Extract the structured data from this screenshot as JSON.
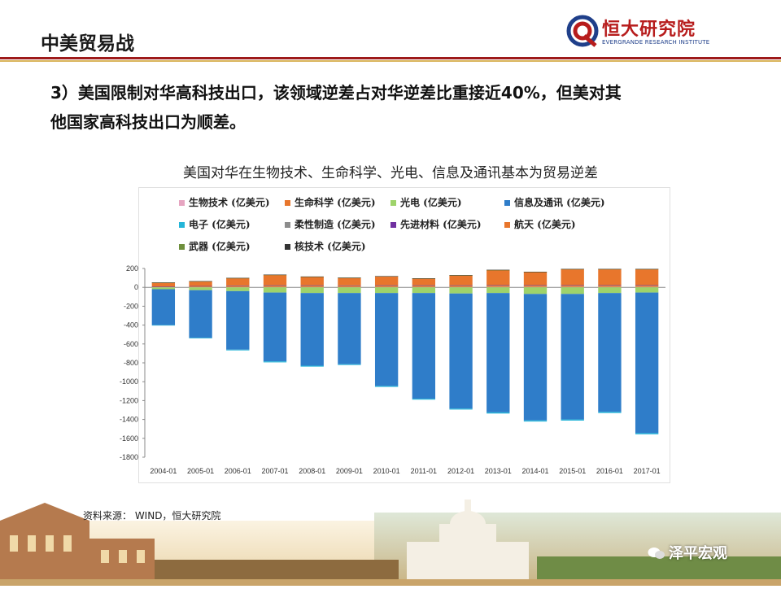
{
  "header": {
    "title": "中美贸易战",
    "logo_cn": "恒大研究院",
    "logo_en": "EVERGRANDE RESEARCH INSTITUTE"
  },
  "heading": {
    "line1": "3）美国限制对华高科技出口，该领域逆差占对华逆差比重接近40%，但美对其",
    "line2": "他国家高科技出口为顺差。"
  },
  "footer": {
    "source": "资料来源： WIND，恒大研究院",
    "brand": "泽平宏观"
  },
  "chart_data": {
    "type": "bar",
    "stacked": true,
    "title": "美国对华在生物技术、生命科学、光电、信息及通讯基本为贸易逆差",
    "categories": [
      "2004-01",
      "2005-01",
      "2006-01",
      "2007-01",
      "2008-01",
      "2009-01",
      "2010-01",
      "2011-01",
      "2012-01",
      "2013-01",
      "2014-01",
      "2015-01",
      "2016-01",
      "2017-01"
    ],
    "ylim": [
      -1800,
      200
    ],
    "yticks": [
      200,
      0,
      -200,
      -400,
      -600,
      -800,
      -1000,
      -1200,
      -1400,
      -1600,
      -1800
    ],
    "ytick_labels": [
      "200",
      "0",
      "-200",
      "-400",
      "-600",
      "-800",
      "-1000",
      "-1200",
      "-1400",
      "-1600",
      "-1800"
    ],
    "legend_position": "top",
    "series": [
      {
        "name": "生物技术 (亿美元)",
        "color": "#e6a5c1",
        "values": [
          2,
          2,
          2,
          3,
          3,
          3,
          3,
          3,
          3,
          4,
          4,
          4,
          4,
          4
        ]
      },
      {
        "name": "生命科学 (亿美元)",
        "color": "#e8762c",
        "values": [
          5,
          8,
          10,
          12,
          12,
          12,
          12,
          12,
          12,
          12,
          12,
          12,
          12,
          12
        ]
      },
      {
        "name": "光电 (亿美元)",
        "color": "#9ed36a",
        "values": [
          -20,
          -30,
          -40,
          -55,
          -60,
          -60,
          -60,
          -60,
          -65,
          -60,
          -70,
          -70,
          -60,
          -55
        ]
      },
      {
        "name": "信息及通讯 (亿美元)",
        "color": "#2f7dc9",
        "values": [
          -380,
          -505,
          -620,
          -730,
          -770,
          -755,
          -985,
          -1120,
          -1220,
          -1265,
          -1340,
          -1330,
          -1260,
          -1490
        ]
      },
      {
        "name": "电子 (亿美元)",
        "color": "#24b5d8",
        "values": [
          -5,
          -6,
          -8,
          -10,
          -10,
          -8,
          -10,
          -10,
          -10,
          -12,
          -12,
          -12,
          -12,
          -12
        ]
      },
      {
        "name": "柔性制造 (亿美元)",
        "color": "#8c8c8c",
        "values": [
          2,
          3,
          5,
          6,
          6,
          5,
          6,
          6,
          6,
          6,
          6,
          6,
          6,
          6
        ]
      },
      {
        "name": "先进材料 (亿美元)",
        "color": "#7030a0",
        "values": [
          1,
          1,
          1,
          1,
          1,
          1,
          1,
          1,
          1,
          1,
          1,
          1,
          1,
          1
        ]
      },
      {
        "name": "航天 (亿美元)",
        "color": "#e8762c",
        "values": [
          40,
          50,
          80,
          110,
          90,
          80,
          95,
          72,
          105,
          160,
          140,
          170,
          170,
          170
        ]
      },
      {
        "name": "武器 (亿美元)",
        "color": "#6e8f3c",
        "values": [
          1,
          1,
          1,
          1,
          1,
          1,
          1,
          1,
          1,
          1,
          1,
          1,
          1,
          1
        ]
      },
      {
        "name": "核技术 (亿美元)",
        "color": "#333333",
        "values": [
          1,
          1,
          1,
          2,
          2,
          1,
          1,
          1,
          2,
          2,
          1,
          1,
          1,
          1
        ]
      }
    ]
  }
}
